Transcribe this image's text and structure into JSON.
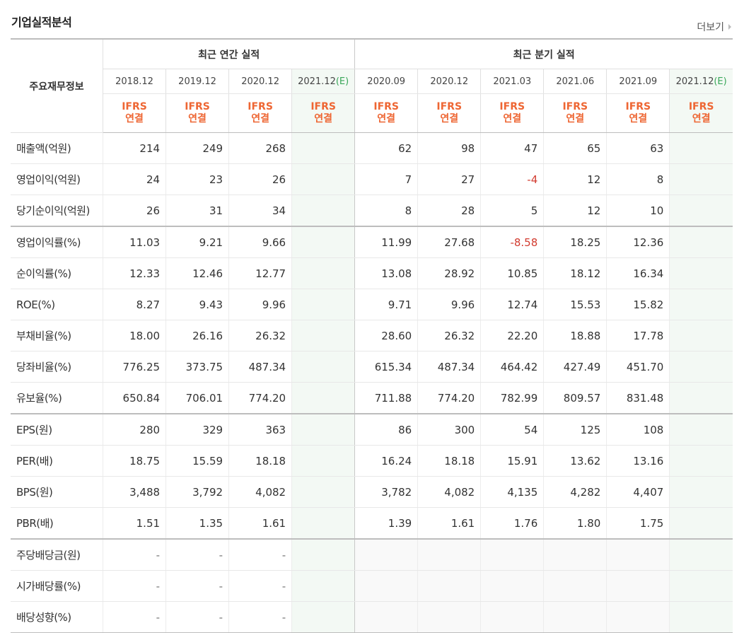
{
  "title": "기업실적분석",
  "more": "더보기",
  "header": {
    "label": "주요재무정보",
    "group_annual": "최근 연간 실적",
    "group_quarter": "최근 분기 실적",
    "periods": [
      "2018.12",
      "2019.12",
      "2020.12",
      "2021.12",
      "2020.09",
      "2020.12",
      "2021.03",
      "2021.06",
      "2021.09",
      "2021.12"
    ],
    "estimate_mark": "(E)",
    "estimate_flags": [
      false,
      false,
      false,
      true,
      false,
      false,
      false,
      false,
      false,
      true
    ],
    "ifrs_line1": "IFRS",
    "ifrs_line2": "연결"
  },
  "rows": [
    {
      "name": "매출액(억원)",
      "values": [
        "214",
        "249",
        "268",
        "",
        "62",
        "98",
        "47",
        "65",
        "63",
        ""
      ]
    },
    {
      "name": "영업이익(억원)",
      "values": [
        "24",
        "23",
        "26",
        "",
        "7",
        "27",
        "-4",
        "12",
        "8",
        ""
      ]
    },
    {
      "name": "당기순이익(억원)",
      "values": [
        "26",
        "31",
        "34",
        "",
        "8",
        "28",
        "5",
        "12",
        "10",
        ""
      ]
    },
    {
      "name": "영업이익률(%)",
      "values": [
        "11.03",
        "9.21",
        "9.66",
        "",
        "11.99",
        "27.68",
        "-8.58",
        "18.25",
        "12.36",
        ""
      ]
    },
    {
      "name": "순이익률(%)",
      "values": [
        "12.33",
        "12.46",
        "12.77",
        "",
        "13.08",
        "28.92",
        "10.85",
        "18.12",
        "16.34",
        ""
      ]
    },
    {
      "name": "ROE(%)",
      "values": [
        "8.27",
        "9.43",
        "9.96",
        "",
        "9.71",
        "9.96",
        "12.74",
        "15.53",
        "15.82",
        ""
      ]
    },
    {
      "name": "부채비율(%)",
      "values": [
        "18.00",
        "26.16",
        "26.32",
        "",
        "28.60",
        "26.32",
        "22.20",
        "18.88",
        "17.78",
        ""
      ]
    },
    {
      "name": "당좌비율(%)",
      "values": [
        "776.25",
        "373.75",
        "487.34",
        "",
        "615.34",
        "487.34",
        "464.42",
        "427.49",
        "451.70",
        ""
      ]
    },
    {
      "name": "유보율(%)",
      "values": [
        "650.84",
        "706.01",
        "774.20",
        "",
        "711.88",
        "774.20",
        "782.99",
        "809.57",
        "831.48",
        ""
      ]
    },
    {
      "name": "EPS(원)",
      "values": [
        "280",
        "329",
        "363",
        "",
        "86",
        "300",
        "54",
        "125",
        "108",
        ""
      ]
    },
    {
      "name": "PER(배)",
      "values": [
        "18.75",
        "15.59",
        "18.18",
        "",
        "16.24",
        "18.18",
        "15.91",
        "13.62",
        "13.16",
        ""
      ]
    },
    {
      "name": "BPS(원)",
      "values": [
        "3,488",
        "3,792",
        "4,082",
        "",
        "3,782",
        "4,082",
        "4,135",
        "4,282",
        "4,407",
        ""
      ]
    },
    {
      "name": "PBR(배)",
      "values": [
        "1.51",
        "1.35",
        "1.61",
        "",
        "1.39",
        "1.61",
        "1.76",
        "1.80",
        "1.75",
        ""
      ]
    },
    {
      "name": "주당배당금(원)",
      "values": [
        "-",
        "-",
        "-",
        "",
        "",
        "",
        "",
        "",
        "",
        ""
      ]
    },
    {
      "name": "시가배당률(%)",
      "values": [
        "-",
        "-",
        "-",
        "",
        "",
        "",
        "",
        "",
        "",
        ""
      ]
    },
    {
      "name": "배당성향(%)",
      "values": [
        "-",
        "-",
        "-",
        "",
        "",
        "",
        "",
        "",
        "",
        ""
      ]
    }
  ],
  "colors": {
    "ifrs": "#ee6633",
    "estimate": "#3aa75a",
    "negative": "#d23b2f"
  }
}
